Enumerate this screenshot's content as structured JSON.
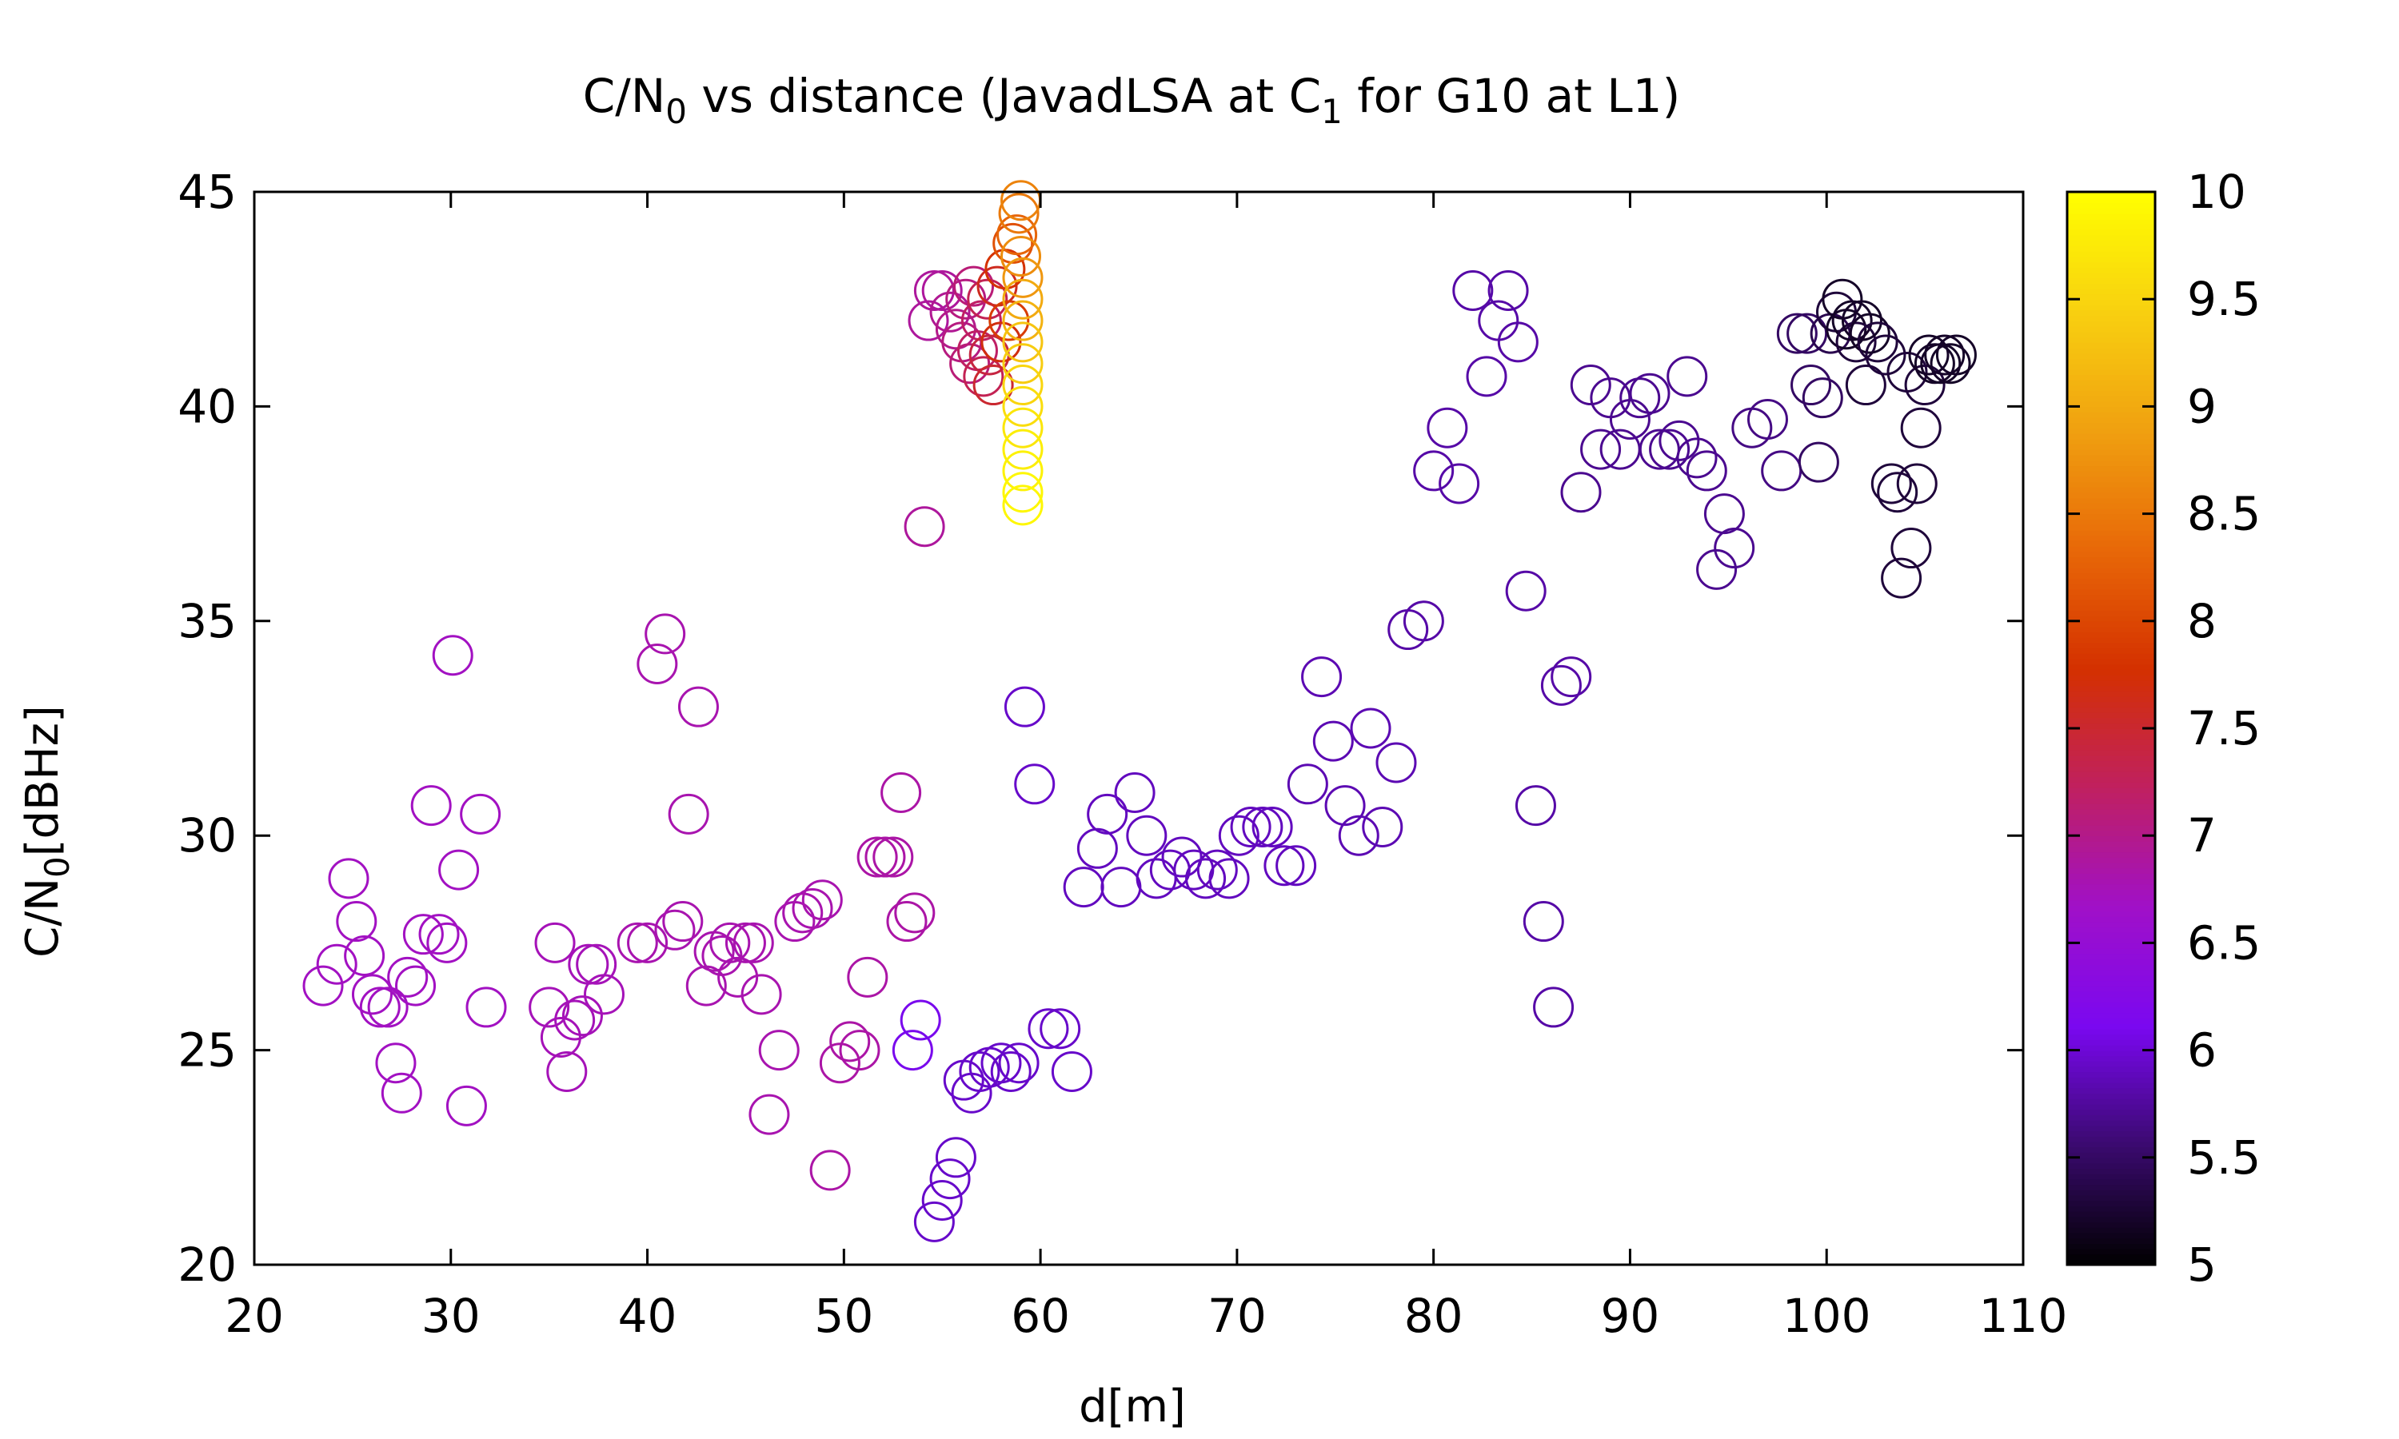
{
  "chart_data": {
    "type": "scatter",
    "title": "C/N0 vs distance (JavadLSA at C1 for G10 at L1)",
    "title_parts": {
      "a": "C/N",
      "a_sub": "0",
      "b": " vs distance (JavadLSA at C",
      "b_sub": "1",
      "c": " for G10 at L1)"
    },
    "xlabel": "d[m]",
    "ylabel": "C/N0[dBHz]",
    "ylabel_parts": {
      "a": "C/N",
      "a_sub": "0",
      "b": "[dBHz]"
    },
    "xlim": [
      20,
      110
    ],
    "ylim": [
      20,
      45
    ],
    "xticks": [
      "20",
      "30",
      "40",
      "50",
      "60",
      "70",
      "80",
      "90",
      "100",
      "110"
    ],
    "yticks": [
      "20",
      "25",
      "30",
      "35",
      "40",
      "45"
    ],
    "colorbar": {
      "range": [
        5,
        10
      ],
      "ticks": [
        "5",
        "5.5",
        "6",
        "6.5",
        "7",
        "7.5",
        "8",
        "8.5",
        "9",
        "9.5",
        "10"
      ],
      "palette": [
        "#000000",
        "#3a0a6e",
        "#7a08f0",
        "#a010c8",
        "#c02060",
        "#d43000",
        "#e86808",
        "#f0a010",
        "#f8d010",
        "#ffff00"
      ]
    },
    "marker": "open-circle",
    "points": [
      [
        23.5,
        26.5,
        6.7
      ],
      [
        24.2,
        27.0,
        6.7
      ],
      [
        24.8,
        29.0,
        6.7
      ],
      [
        25.2,
        28.0,
        6.7
      ],
      [
        25.6,
        27.2,
        6.7
      ],
      [
        26.0,
        26.3,
        6.7
      ],
      [
        26.4,
        26.0,
        6.7
      ],
      [
        26.8,
        26.0,
        6.7
      ],
      [
        27.2,
        24.7,
        6.7
      ],
      [
        27.5,
        24.0,
        6.7
      ],
      [
        27.8,
        26.7,
        6.7
      ],
      [
        28.2,
        26.5,
        6.7
      ],
      [
        28.6,
        27.7,
        6.7
      ],
      [
        29.0,
        30.7,
        6.7
      ],
      [
        29.4,
        27.7,
        6.7
      ],
      [
        29.8,
        27.5,
        6.7
      ],
      [
        30.1,
        34.2,
        6.7
      ],
      [
        30.4,
        29.2,
        6.7
      ],
      [
        30.8,
        23.7,
        6.7
      ],
      [
        31.5,
        30.5,
        6.7
      ],
      [
        31.8,
        26.0,
        6.7
      ],
      [
        35.0,
        26.0,
        6.75
      ],
      [
        35.3,
        27.5,
        6.75
      ],
      [
        35.6,
        25.3,
        6.75
      ],
      [
        35.9,
        24.5,
        6.75
      ],
      [
        36.3,
        25.7,
        6.75
      ],
      [
        36.7,
        25.8,
        6.75
      ],
      [
        37.0,
        27.0,
        6.75
      ],
      [
        37.4,
        27.0,
        6.75
      ],
      [
        37.8,
        26.3,
        6.75
      ],
      [
        39.5,
        27.5,
        6.8
      ],
      [
        40.0,
        27.5,
        6.8
      ],
      [
        40.5,
        34.0,
        6.8
      ],
      [
        40.9,
        34.7,
        6.8
      ],
      [
        41.4,
        27.8,
        6.8
      ],
      [
        41.8,
        28.0,
        6.8
      ],
      [
        42.1,
        30.5,
        6.8
      ],
      [
        42.6,
        33.0,
        6.8
      ],
      [
        43.0,
        26.5,
        6.8
      ],
      [
        43.4,
        27.3,
        6.8
      ],
      [
        43.8,
        27.2,
        6.8
      ],
      [
        44.2,
        27.5,
        6.8
      ],
      [
        44.6,
        26.7,
        6.8
      ],
      [
        45.0,
        27.5,
        6.8
      ],
      [
        45.4,
        27.5,
        6.8
      ],
      [
        45.8,
        26.3,
        6.8
      ],
      [
        46.2,
        23.5,
        6.8
      ],
      [
        46.7,
        25.0,
        6.8
      ],
      [
        47.5,
        28.0,
        6.8
      ],
      [
        47.9,
        28.2,
        6.8
      ],
      [
        48.4,
        28.3,
        6.8
      ],
      [
        48.9,
        28.5,
        6.8
      ],
      [
        49.3,
        22.2,
        6.85
      ],
      [
        49.8,
        24.7,
        6.85
      ],
      [
        50.3,
        25.2,
        6.85
      ],
      [
        50.8,
        25.0,
        6.85
      ],
      [
        51.2,
        26.7,
        6.85
      ],
      [
        51.7,
        29.5,
        6.85
      ],
      [
        52.1,
        29.5,
        6.85
      ],
      [
        52.5,
        29.5,
        6.85
      ],
      [
        52.9,
        31.0,
        6.85
      ],
      [
        53.2,
        28.0,
        6.85
      ],
      [
        53.6,
        28.2,
        6.85
      ],
      [
        53.5,
        25.0,
        6.1
      ],
      [
        53.9,
        25.7,
        6.1
      ],
      [
        54.1,
        37.2,
        6.9
      ],
      [
        54.3,
        42.0,
        6.9
      ],
      [
        54.6,
        42.7,
        6.9
      ],
      [
        55.0,
        42.7,
        6.9
      ],
      [
        55.4,
        42.2,
        6.95
      ],
      [
        55.7,
        41.8,
        7.0
      ],
      [
        56.0,
        41.5,
        7.05
      ],
      [
        56.2,
        42.5,
        7.05
      ],
      [
        56.4,
        41.0,
        7.1
      ],
      [
        56.6,
        42.8,
        7.1
      ],
      [
        56.8,
        41.3,
        7.2
      ],
      [
        57.0,
        42.0,
        7.2
      ],
      [
        57.1,
        40.7,
        7.3
      ],
      [
        57.3,
        42.5,
        7.3
      ],
      [
        57.4,
        41.2,
        7.4
      ],
      [
        57.6,
        40.5,
        7.5
      ],
      [
        57.8,
        42.8,
        7.6
      ],
      [
        58.0,
        41.5,
        7.7
      ],
      [
        58.2,
        43.2,
        7.8
      ],
      [
        58.4,
        42.0,
        7.9
      ],
      [
        58.6,
        43.8,
        8.1
      ],
      [
        58.8,
        44.0,
        8.3
      ],
      [
        58.9,
        44.5,
        8.5
      ],
      [
        59.0,
        44.8,
        8.6
      ],
      [
        59.0,
        43.5,
        8.7
      ],
      [
        59.1,
        43.0,
        8.8
      ],
      [
        59.1,
        42.5,
        9.0
      ],
      [
        59.1,
        42.0,
        9.1
      ],
      [
        59.1,
        41.5,
        9.3
      ],
      [
        59.1,
        41.0,
        9.4
      ],
      [
        59.1,
        40.5,
        9.5
      ],
      [
        59.1,
        40.0,
        9.6
      ],
      [
        59.1,
        39.5,
        9.7
      ],
      [
        59.1,
        39.0,
        9.8
      ],
      [
        59.1,
        38.5,
        9.85
      ],
      [
        59.1,
        38.0,
        9.9
      ],
      [
        59.1,
        37.7,
        9.9
      ],
      [
        54.6,
        21.0,
        5.95
      ],
      [
        55.0,
        21.5,
        5.95
      ],
      [
        55.4,
        22.0,
        5.95
      ],
      [
        55.7,
        22.5,
        5.95
      ],
      [
        56.1,
        24.3,
        5.95
      ],
      [
        56.5,
        24.0,
        5.95
      ],
      [
        56.9,
        24.5,
        5.95
      ],
      [
        57.4,
        24.6,
        5.95
      ],
      [
        58.0,
        24.7,
        5.95
      ],
      [
        58.5,
        24.5,
        5.95
      ],
      [
        58.9,
        24.7,
        5.95
      ],
      [
        59.2,
        33.0,
        5.95
      ],
      [
        59.7,
        31.2,
        5.95
      ],
      [
        60.4,
        25.5,
        5.95
      ],
      [
        61.0,
        25.5,
        5.95
      ],
      [
        61.6,
        24.5,
        5.95
      ],
      [
        62.2,
        28.8,
        5.9
      ],
      [
        62.9,
        29.7,
        5.9
      ],
      [
        63.4,
        30.5,
        5.9
      ],
      [
        64.1,
        28.8,
        5.9
      ],
      [
        64.8,
        31.0,
        5.9
      ],
      [
        65.4,
        30.0,
        5.9
      ],
      [
        65.9,
        29.0,
        5.9
      ],
      [
        66.6,
        29.2,
        5.9
      ],
      [
        67.2,
        29.5,
        5.9
      ],
      [
        67.8,
        29.2,
        5.9
      ],
      [
        68.4,
        29.0,
        5.9
      ],
      [
        69.0,
        29.2,
        5.9
      ],
      [
        69.6,
        29.0,
        5.9
      ],
      [
        70.1,
        30.0,
        5.9
      ],
      [
        70.7,
        30.2,
        5.9
      ],
      [
        71.3,
        30.2,
        5.9
      ],
      [
        71.8,
        30.2,
        5.9
      ],
      [
        72.4,
        29.3,
        5.9
      ],
      [
        73.0,
        29.3,
        5.9
      ],
      [
        73.6,
        31.2,
        5.85
      ],
      [
        74.3,
        33.7,
        5.85
      ],
      [
        74.9,
        32.2,
        5.85
      ],
      [
        75.5,
        30.7,
        5.85
      ],
      [
        76.2,
        30.0,
        5.85
      ],
      [
        76.8,
        32.5,
        5.85
      ],
      [
        77.4,
        30.2,
        5.85
      ],
      [
        78.1,
        31.7,
        5.85
      ],
      [
        78.7,
        34.8,
        5.8
      ],
      [
        79.5,
        35.0,
        5.8
      ],
      [
        80.0,
        38.5,
        5.8
      ],
      [
        80.7,
        39.5,
        5.8
      ],
      [
        81.3,
        38.2,
        5.8
      ],
      [
        82.0,
        42.7,
        5.8
      ],
      [
        82.7,
        40.7,
        5.8
      ],
      [
        83.3,
        42.0,
        5.8
      ],
      [
        83.8,
        42.7,
        5.8
      ],
      [
        84.3,
        41.5,
        5.8
      ],
      [
        84.7,
        35.7,
        5.8
      ],
      [
        85.2,
        30.7,
        5.8
      ],
      [
        85.6,
        28.0,
        5.8
      ],
      [
        86.1,
        26.0,
        5.8
      ],
      [
        86.5,
        33.5,
        5.8
      ],
      [
        87.0,
        33.7,
        5.8
      ],
      [
        87.5,
        38.0,
        5.7
      ],
      [
        88.0,
        40.5,
        5.7
      ],
      [
        88.5,
        39.0,
        5.7
      ],
      [
        89.0,
        40.2,
        5.7
      ],
      [
        89.5,
        39.0,
        5.7
      ],
      [
        90.0,
        39.7,
        5.7
      ],
      [
        90.5,
        40.2,
        5.7
      ],
      [
        91.0,
        40.3,
        5.7
      ],
      [
        91.5,
        39.0,
        5.7
      ],
      [
        92.0,
        39.0,
        5.7
      ],
      [
        92.5,
        39.2,
        5.7
      ],
      [
        92.9,
        40.7,
        5.7
      ],
      [
        93.4,
        38.8,
        5.7
      ],
      [
        93.9,
        38.5,
        5.7
      ],
      [
        94.4,
        36.2,
        5.7
      ],
      [
        94.8,
        37.5,
        5.7
      ],
      [
        95.3,
        36.7,
        5.7
      ],
      [
        96.2,
        39.5,
        5.65
      ],
      [
        97.0,
        39.7,
        5.65
      ],
      [
        97.7,
        38.5,
        5.65
      ],
      [
        98.5,
        41.7,
        5.5
      ],
      [
        99.0,
        41.7,
        5.5
      ],
      [
        99.2,
        40.5,
        5.5
      ],
      [
        99.6,
        38.7,
        5.5
      ],
      [
        99.8,
        40.2,
        5.5
      ],
      [
        100.2,
        41.7,
        5.4
      ],
      [
        100.5,
        42.2,
        5.3
      ],
      [
        100.8,
        42.5,
        5.2
      ],
      [
        101.0,
        41.8,
        5.2
      ],
      [
        101.3,
        42.0,
        5.2
      ],
      [
        101.5,
        41.5,
        5.3
      ],
      [
        101.8,
        42.0,
        5.2
      ],
      [
        102.0,
        40.5,
        5.3
      ],
      [
        102.2,
        41.7,
        5.2
      ],
      [
        102.6,
        41.5,
        5.3
      ],
      [
        103.0,
        41.2,
        5.3
      ],
      [
        103.3,
        38.2,
        5.3
      ],
      [
        103.6,
        38.0,
        5.3
      ],
      [
        103.8,
        36.0,
        5.3
      ],
      [
        104.1,
        40.8,
        5.3
      ],
      [
        104.3,
        36.7,
        5.3
      ],
      [
        104.6,
        38.2,
        5.3
      ],
      [
        104.8,
        39.5,
        5.3
      ],
      [
        105.0,
        40.5,
        5.3
      ],
      [
        105.2,
        41.2,
        5.2
      ],
      [
        105.5,
        41.0,
        5.2
      ],
      [
        105.8,
        41.0,
        5.2
      ],
      [
        106.0,
        41.2,
        5.2
      ],
      [
        106.3,
        41.0,
        5.2
      ],
      [
        106.6,
        41.2,
        5.2
      ]
    ]
  }
}
